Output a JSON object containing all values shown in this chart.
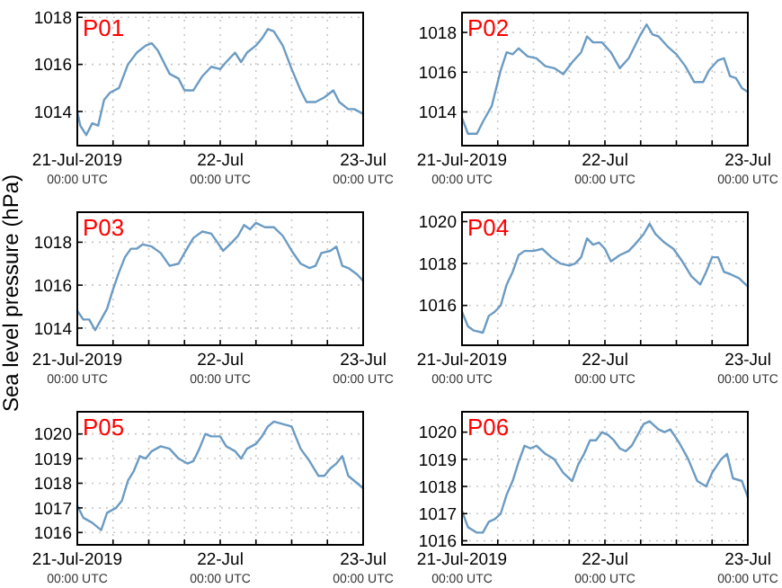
{
  "chart_data": [
    {
      "type": "line",
      "title": "P01",
      "color": "#6b9bc3",
      "grid": true,
      "xlim": [
        "2019-07-21T00:00",
        "2019-07-23T00:00"
      ],
      "ylim": [
        1012.55,
        1018.2
      ],
      "yticks": [
        1014,
        1016,
        1018
      ],
      "xticks": [
        {
          "value": "2019-07-21T00:00",
          "label": "21-Jul-2019\n00:00 UTC"
        },
        {
          "value": "2019-07-21T06:00",
          "label": null
        },
        {
          "value": "2019-07-21T12:00",
          "label": null
        },
        {
          "value": "2019-07-21T18:00",
          "label": null
        },
        {
          "value": "2019-07-22T00:00",
          "label": "22-Jul\n00:00 UTC"
        },
        {
          "value": "2019-07-22T06:00",
          "label": null
        },
        {
          "value": "2019-07-22T12:00",
          "label": null
        },
        {
          "value": "2019-07-22T18:00",
          "label": null
        },
        {
          "value": "2019-07-23T00:00",
          "label": "23-Jul\n00:00 UTC"
        }
      ],
      "x": [
        "2019-07-21T00:00",
        "2019-07-21T00:30",
        "2019-07-21T01:30",
        "2019-07-21T02:30",
        "2019-07-21T03:30",
        "2019-07-21T04:30",
        "2019-07-21T05:30",
        "2019-07-21T07:00",
        "2019-07-21T08:30",
        "2019-07-21T10:00",
        "2019-07-21T11:30",
        "2019-07-21T12:30",
        "2019-07-21T13:30",
        "2019-07-21T14:30",
        "2019-07-21T15:30",
        "2019-07-21T17:00",
        "2019-07-21T18:00",
        "2019-07-21T19:30",
        "2019-07-21T21:00",
        "2019-07-21T22:30",
        "2019-07-22T00:00",
        "2019-07-22T01:00",
        "2019-07-22T02:30",
        "2019-07-22T03:30",
        "2019-07-22T04:30",
        "2019-07-22T06:00",
        "2019-07-22T07:00",
        "2019-07-22T08:00",
        "2019-07-22T09:00",
        "2019-07-22T10:30",
        "2019-07-22T12:00",
        "2019-07-22T13:30",
        "2019-07-22T14:30",
        "2019-07-22T16:00",
        "2019-07-22T17:30",
        "2019-07-22T19:00",
        "2019-07-22T20:00",
        "2019-07-22T21:30",
        "2019-07-22T22:30",
        "2019-07-23T00:00"
      ],
      "values": [
        1014.0,
        1013.4,
        1013.0,
        1013.5,
        1013.4,
        1014.5,
        1014.8,
        1015.0,
        1016.0,
        1016.5,
        1016.8,
        1016.9,
        1016.6,
        1016.1,
        1015.6,
        1015.4,
        1014.9,
        1014.9,
        1015.5,
        1015.9,
        1015.8,
        1016.1,
        1016.5,
        1016.1,
        1016.5,
        1016.8,
        1017.1,
        1017.5,
        1017.4,
        1016.8,
        1015.8,
        1014.9,
        1014.4,
        1014.4,
        1014.6,
        1014.9,
        1014.4,
        1014.1,
        1014.1,
        1013.9
      ]
    },
    {
      "type": "line",
      "title": "P02",
      "color": "#6b9bc3",
      "grid": true,
      "xlim": [
        "2019-07-21T00:00",
        "2019-07-23T00:00"
      ],
      "ylim": [
        1012.3,
        1019
      ],
      "yticks": [
        1014,
        1016,
        1018
      ],
      "xticks": [
        {
          "value": "2019-07-21T00:00",
          "label": "21-Jul-2019\n00:00 UTC"
        },
        {
          "value": "2019-07-21T06:00",
          "label": null
        },
        {
          "value": "2019-07-21T12:00",
          "label": null
        },
        {
          "value": "2019-07-21T18:00",
          "label": null
        },
        {
          "value": "2019-07-22T00:00",
          "label": "22-Jul\n00:00 UTC"
        },
        {
          "value": "2019-07-22T06:00",
          "label": null
        },
        {
          "value": "2019-07-22T12:00",
          "label": null
        },
        {
          "value": "2019-07-22T18:00",
          "label": null
        },
        {
          "value": "2019-07-23T00:00",
          "label": "23-Jul\n00:00 UTC"
        }
      ],
      "x": [
        "2019-07-21T00:00",
        "2019-07-21T01:00",
        "2019-07-21T02:30",
        "2019-07-21T03:30",
        "2019-07-21T05:00",
        "2019-07-21T06:30",
        "2019-07-21T07:30",
        "2019-07-21T08:30",
        "2019-07-21T09:30",
        "2019-07-21T11:00",
        "2019-07-21T12:30",
        "2019-07-21T14:00",
        "2019-07-21T15:30",
        "2019-07-21T17:00",
        "2019-07-21T18:30",
        "2019-07-21T20:00",
        "2019-07-21T21:00",
        "2019-07-21T22:00",
        "2019-07-21T23:30",
        "2019-07-22T01:00",
        "2019-07-22T02:30",
        "2019-07-22T04:00",
        "2019-07-22T05:00",
        "2019-07-22T06:00",
        "2019-07-22T07:00",
        "2019-07-22T08:00",
        "2019-07-22T09:00",
        "2019-07-22T10:30",
        "2019-07-22T12:00",
        "2019-07-22T13:30",
        "2019-07-22T15:00",
        "2019-07-22T16:30",
        "2019-07-22T17:30",
        "2019-07-22T19:00",
        "2019-07-22T20:00",
        "2019-07-22T21:00",
        "2019-07-22T22:00",
        "2019-07-22T23:00",
        "2019-07-23T00:00"
      ],
      "values": [
        1013.7,
        1012.9,
        1012.9,
        1013.5,
        1014.3,
        1016.1,
        1017.0,
        1016.9,
        1017.2,
        1016.8,
        1016.7,
        1016.3,
        1016.2,
        1015.9,
        1016.5,
        1017.0,
        1017.8,
        1017.5,
        1017.5,
        1017.0,
        1016.2,
        1016.7,
        1017.3,
        1017.9,
        1018.4,
        1017.9,
        1017.8,
        1017.3,
        1016.9,
        1016.3,
        1015.5,
        1015.5,
        1016.1,
        1016.6,
        1016.7,
        1015.8,
        1015.7,
        1015.2,
        1015.0
      ]
    },
    {
      "type": "line",
      "title": "P03",
      "ylabel": "Sea level pressure (hPa)",
      "color": "#6b9bc3",
      "grid": true,
      "xlim": [
        "2019-07-21T00:00",
        "2019-07-23T00:00"
      ],
      "ylim": [
        1013.2,
        1019.4
      ],
      "yticks": [
        1014,
        1016,
        1018
      ],
      "xticks": [
        {
          "value": "2019-07-21T00:00",
          "label": "21-Jul-2019\n00:00 UTC"
        },
        {
          "value": "2019-07-21T06:00",
          "label": null
        },
        {
          "value": "2019-07-21T12:00",
          "label": null
        },
        {
          "value": "2019-07-21T18:00",
          "label": null
        },
        {
          "value": "2019-07-22T00:00",
          "label": "22-Jul\n00:00 UTC"
        },
        {
          "value": "2019-07-22T06:00",
          "label": null
        },
        {
          "value": "2019-07-22T12:00",
          "label": null
        },
        {
          "value": "2019-07-22T18:00",
          "label": null
        },
        {
          "value": "2019-07-23T00:00",
          "label": "23-Jul\n00:00 UTC"
        }
      ],
      "x": [
        "2019-07-21T00:00",
        "2019-07-21T01:00",
        "2019-07-21T02:00",
        "2019-07-21T03:00",
        "2019-07-21T04:00",
        "2019-07-21T05:00",
        "2019-07-21T06:00",
        "2019-07-21T07:00",
        "2019-07-21T08:00",
        "2019-07-21T09:00",
        "2019-07-21T10:00",
        "2019-07-21T11:00",
        "2019-07-21T12:30",
        "2019-07-21T14:00",
        "2019-07-21T15:30",
        "2019-07-21T17:00",
        "2019-07-21T18:00",
        "2019-07-21T19:30",
        "2019-07-21T21:00",
        "2019-07-21T22:30",
        "2019-07-21T23:30",
        "2019-07-22T00:30",
        "2019-07-22T02:00",
        "2019-07-22T03:00",
        "2019-07-22T04:00",
        "2019-07-22T05:00",
        "2019-07-22T06:00",
        "2019-07-22T07:30",
        "2019-07-22T09:00",
        "2019-07-22T10:30",
        "2019-07-22T12:00",
        "2019-07-22T13:30",
        "2019-07-22T15:00",
        "2019-07-22T16:00",
        "2019-07-22T17:00",
        "2019-07-22T18:30",
        "2019-07-22T19:30",
        "2019-07-22T20:30",
        "2019-07-22T21:30",
        "2019-07-22T23:00",
        "2019-07-23T00:00"
      ],
      "values": [
        1014.8,
        1014.4,
        1014.4,
        1013.9,
        1014.4,
        1014.9,
        1015.8,
        1016.6,
        1017.3,
        1017.7,
        1017.7,
        1017.9,
        1017.8,
        1017.5,
        1016.9,
        1017.0,
        1017.5,
        1018.2,
        1018.5,
        1018.4,
        1018.0,
        1017.6,
        1018.0,
        1018.3,
        1018.8,
        1018.6,
        1018.9,
        1018.7,
        1018.7,
        1018.3,
        1017.6,
        1017.0,
        1016.8,
        1016.9,
        1017.5,
        1017.6,
        1017.8,
        1016.9,
        1016.8,
        1016.5,
        1016.2
      ]
    },
    {
      "type": "line",
      "title": "P04",
      "color": "#6b9bc3",
      "grid": true,
      "xlim": [
        "2019-07-21T00:00",
        "2019-07-23T00:00"
      ],
      "ylim": [
        1014.1,
        1020.45
      ],
      "yticks": [
        1016,
        1018,
        1020
      ],
      "xticks": [
        {
          "value": "2019-07-21T00:00",
          "label": "21-Jul-2019\n00:00 UTC"
        },
        {
          "value": "2019-07-21T06:00",
          "label": null
        },
        {
          "value": "2019-07-21T12:00",
          "label": null
        },
        {
          "value": "2019-07-21T18:00",
          "label": null
        },
        {
          "value": "2019-07-22T00:00",
          "label": "22-Jul\n00:00 UTC"
        },
        {
          "value": "2019-07-22T06:00",
          "label": null
        },
        {
          "value": "2019-07-22T12:00",
          "label": null
        },
        {
          "value": "2019-07-22T18:00",
          "label": null
        },
        {
          "value": "2019-07-23T00:00",
          "label": "23-Jul\n00:00 UTC"
        }
      ],
      "x": [
        "2019-07-21T00:00",
        "2019-07-21T01:00",
        "2019-07-21T02:00",
        "2019-07-21T03:30",
        "2019-07-21T04:30",
        "2019-07-21T05:30",
        "2019-07-21T06:30",
        "2019-07-21T07:30",
        "2019-07-21T08:30",
        "2019-07-21T09:30",
        "2019-07-21T10:30",
        "2019-07-21T12:00",
        "2019-07-21T13:30",
        "2019-07-21T15:00",
        "2019-07-21T16:30",
        "2019-07-21T18:00",
        "2019-07-21T19:00",
        "2019-07-21T20:00",
        "2019-07-21T21:00",
        "2019-07-21T22:00",
        "2019-07-21T23:00",
        "2019-07-22T00:00",
        "2019-07-22T01:00",
        "2019-07-22T02:30",
        "2019-07-22T04:00",
        "2019-07-22T05:00",
        "2019-07-22T06:30",
        "2019-07-22T07:30",
        "2019-07-22T08:30",
        "2019-07-22T10:00",
        "2019-07-22T11:30",
        "2019-07-22T13:00",
        "2019-07-22T14:30",
        "2019-07-22T16:00",
        "2019-07-22T17:00",
        "2019-07-22T18:00",
        "2019-07-22T19:00",
        "2019-07-22T20:00",
        "2019-07-22T21:00",
        "2019-07-22T22:30",
        "2019-07-23T00:00"
      ],
      "values": [
        1015.7,
        1015.0,
        1014.8,
        1014.7,
        1015.5,
        1015.7,
        1016.0,
        1017.0,
        1017.6,
        1018.4,
        1018.6,
        1018.6,
        1018.7,
        1018.3,
        1018.0,
        1017.9,
        1018.0,
        1018.3,
        1019.2,
        1018.9,
        1019.0,
        1018.7,
        1018.1,
        1018.4,
        1018.6,
        1018.9,
        1019.4,
        1019.9,
        1019.4,
        1019.0,
        1018.7,
        1018.1,
        1017.4,
        1017.0,
        1017.6,
        1018.3,
        1018.3,
        1017.6,
        1017.5,
        1017.3,
        1016.9
      ]
    },
    {
      "type": "line",
      "title": "P05",
      "color": "#6b9bc3",
      "grid": true,
      "xlim": [
        "2019-07-21T00:00",
        "2019-07-23T00:00"
      ],
      "ylim": [
        1015.5,
        1020.9
      ],
      "yticks": [
        1016,
        1017,
        1018,
        1019,
        1020
      ],
      "xticks": [
        {
          "value": "2019-07-21T00:00",
          "label": "21-Jul-2019\n00:00 UTC"
        },
        {
          "value": "2019-07-21T06:00",
          "label": null
        },
        {
          "value": "2019-07-21T12:00",
          "label": null
        },
        {
          "value": "2019-07-21T18:00",
          "label": null
        },
        {
          "value": "2019-07-22T00:00",
          "label": "22-Jul\n00:00 UTC"
        },
        {
          "value": "2019-07-22T06:00",
          "label": null
        },
        {
          "value": "2019-07-22T12:00",
          "label": null
        },
        {
          "value": "2019-07-22T18:00",
          "label": null
        },
        {
          "value": "2019-07-23T00:00",
          "label": "23-Jul\n00:00 UTC"
        }
      ],
      "x": [
        "2019-07-21T00:00",
        "2019-07-21T01:00",
        "2019-07-21T02:30",
        "2019-07-21T04:00",
        "2019-07-21T05:00",
        "2019-07-21T06:30",
        "2019-07-21T07:30",
        "2019-07-21T08:30",
        "2019-07-21T09:30",
        "2019-07-21T10:30",
        "2019-07-21T11:30",
        "2019-07-21T12:30",
        "2019-07-21T14:00",
        "2019-07-21T15:30",
        "2019-07-21T17:00",
        "2019-07-21T18:30",
        "2019-07-21T19:30",
        "2019-07-21T20:30",
        "2019-07-21T21:30",
        "2019-07-21T22:30",
        "2019-07-22T00:00",
        "2019-07-22T01:00",
        "2019-07-22T02:30",
        "2019-07-22T03:30",
        "2019-07-22T04:30",
        "2019-07-22T06:00",
        "2019-07-22T07:00",
        "2019-07-22T08:00",
        "2019-07-22T09:00",
        "2019-07-22T10:30",
        "2019-07-22T12:00",
        "2019-07-22T13:30",
        "2019-07-22T15:00",
        "2019-07-22T16:30",
        "2019-07-22T17:30",
        "2019-07-22T18:30",
        "2019-07-22T19:30",
        "2019-07-22T20:30",
        "2019-07-22T21:30",
        "2019-07-22T23:00",
        "2019-07-23T00:00"
      ],
      "values": [
        1017.1,
        1016.6,
        1016.4,
        1016.1,
        1016.8,
        1017.0,
        1017.3,
        1018.1,
        1018.5,
        1019.1,
        1019.0,
        1019.3,
        1019.5,
        1019.4,
        1019.0,
        1018.8,
        1018.9,
        1019.4,
        1020.0,
        1019.9,
        1019.9,
        1019.5,
        1019.3,
        1019.0,
        1019.4,
        1019.6,
        1019.9,
        1020.3,
        1020.5,
        1020.4,
        1020.3,
        1019.4,
        1018.9,
        1018.3,
        1018.3,
        1018.6,
        1018.8,
        1019.1,
        1018.3,
        1018.0,
        1017.8
      ]
    },
    {
      "type": "line",
      "title": "P06",
      "color": "#6b9bc3",
      "grid": true,
      "xlim": [
        "2019-07-21T00:00",
        "2019-07-23T00:00"
      ],
      "ylim": [
        1015.85,
        1020.75
      ],
      "yticks": [
        1016,
        1017,
        1018,
        1019,
        1020
      ],
      "xticks": [
        {
          "value": "2019-07-21T00:00",
          "label": "21-Jul-2019\n00:00 UTC"
        },
        {
          "value": "2019-07-21T06:00",
          "label": null
        },
        {
          "value": "2019-07-21T12:00",
          "label": null
        },
        {
          "value": "2019-07-21T18:00",
          "label": null
        },
        {
          "value": "2019-07-22T00:00",
          "label": "22-Jul\n00:00 UTC"
        },
        {
          "value": "2019-07-22T06:00",
          "label": null
        },
        {
          "value": "2019-07-22T12:00",
          "label": null
        },
        {
          "value": "2019-07-22T18:00",
          "label": null
        },
        {
          "value": "2019-07-23T00:00",
          "label": "23-Jul\n00:00 UTC"
        }
      ],
      "x": [
        "2019-07-21T00:00",
        "2019-07-21T01:00",
        "2019-07-21T02:30",
        "2019-07-21T03:30",
        "2019-07-21T04:30",
        "2019-07-21T05:30",
        "2019-07-21T06:30",
        "2019-07-21T07:30",
        "2019-07-21T08:30",
        "2019-07-21T09:30",
        "2019-07-21T10:30",
        "2019-07-21T11:30",
        "2019-07-21T12:30",
        "2019-07-21T14:00",
        "2019-07-21T15:30",
        "2019-07-21T17:00",
        "2019-07-21T18:30",
        "2019-07-21T19:30",
        "2019-07-21T20:30",
        "2019-07-21T21:30",
        "2019-07-21T22:30",
        "2019-07-21T23:30",
        "2019-07-22T00:30",
        "2019-07-22T01:30",
        "2019-07-22T02:30",
        "2019-07-22T03:30",
        "2019-07-22T04:30",
        "2019-07-22T05:30",
        "2019-07-22T06:30",
        "2019-07-22T07:30",
        "2019-07-22T09:00",
        "2019-07-22T10:00",
        "2019-07-22T11:00",
        "2019-07-22T12:30",
        "2019-07-22T14:00",
        "2019-07-22T15:30",
        "2019-07-22T17:00",
        "2019-07-22T18:00",
        "2019-07-22T19:30",
        "2019-07-22T20:30",
        "2019-07-22T21:30",
        "2019-07-22T23:00",
        "2019-07-23T00:00"
      ],
      "values": [
        1017.1,
        1016.5,
        1016.3,
        1016.3,
        1016.7,
        1016.8,
        1017.0,
        1017.7,
        1018.2,
        1018.9,
        1019.5,
        1019.4,
        1019.5,
        1019.2,
        1019.0,
        1018.5,
        1018.2,
        1018.8,
        1019.2,
        1019.7,
        1019.7,
        1020.0,
        1019.9,
        1019.7,
        1019.4,
        1019.3,
        1019.5,
        1019.9,
        1020.3,
        1020.4,
        1020.1,
        1020.0,
        1020.1,
        1019.6,
        1019.0,
        1018.2,
        1018.0,
        1018.5,
        1019.0,
        1019.2,
        1018.3,
        1018.2,
        1017.6
      ]
    }
  ]
}
